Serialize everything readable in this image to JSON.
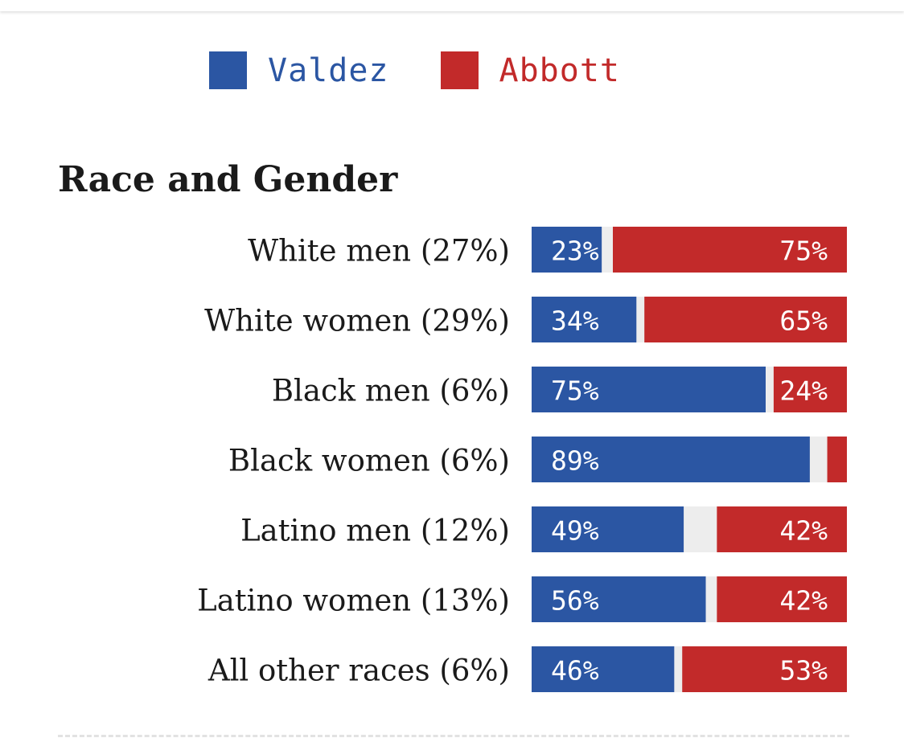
{
  "colors": {
    "valdez": "#2b56a3",
    "abbott": "#c22a2a",
    "gap": "#ededed",
    "label_text": "#1a1a1a",
    "bar_text": "#ffffff"
  },
  "legend": {
    "items": [
      {
        "label": "Valdez",
        "color": "#2b56a3"
      },
      {
        "label": "Abbott",
        "color": "#c22a2a"
      }
    ]
  },
  "section": {
    "title": "Race and Gender"
  },
  "chart_data": {
    "type": "bar",
    "orientation": "horizontal-stacked",
    "title": "Race and Gender",
    "xlim": [
      0,
      100
    ],
    "categories": [
      "White men (27%)",
      "White women (29%)",
      "Black men (6%)",
      "Black women (6%)",
      "Latino men (12%)",
      "Latino women (13%)",
      "All other races (6%)"
    ],
    "series": [
      {
        "name": "Valdez",
        "values": [
          23,
          34,
          75,
          89,
          49,
          56,
          46
        ],
        "labels": [
          "23%",
          "34%",
          "75%",
          "89%",
          "49%",
          "56%",
          "46%"
        ]
      },
      {
        "name": "Abbott",
        "values": [
          75,
          65,
          24,
          7,
          42,
          42,
          53
        ],
        "labels": [
          "75%",
          "65%",
          "24%",
          "",
          "42%",
          "42%",
          "53%"
        ]
      }
    ]
  }
}
